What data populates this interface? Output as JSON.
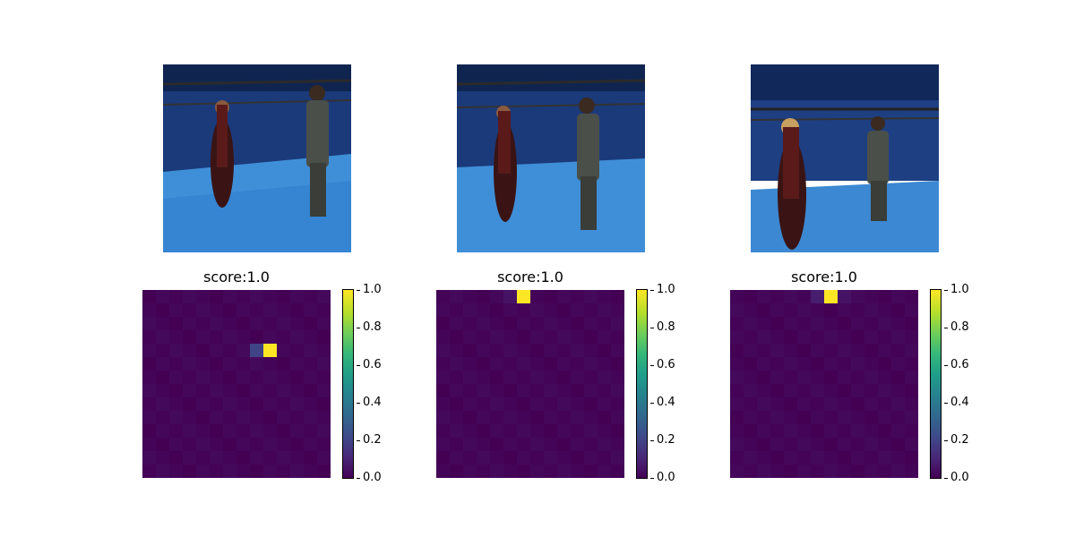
{
  "chart_data": [
    {
      "type": "image",
      "panel": "photo-1"
    },
    {
      "type": "image",
      "panel": "photo-2"
    },
    {
      "type": "image",
      "panel": "photo-3"
    },
    {
      "type": "heatmap",
      "title": "score:1.0",
      "grid": [
        14,
        14
      ],
      "hot_cells": [
        {
          "row": 4,
          "col": 9,
          "value": 1.0
        },
        {
          "row": 4,
          "col": 8,
          "value": 0.2
        }
      ],
      "colorbar": {
        "ticks": [
          "0.0",
          "0.2",
          "0.4",
          "0.6",
          "0.8",
          "1.0"
        ],
        "range": [
          0,
          1
        ],
        "colormap": "viridis"
      }
    },
    {
      "type": "heatmap",
      "title": "score:1.0",
      "grid": [
        14,
        14
      ],
      "hot_cells": [
        {
          "row": 0,
          "col": 6,
          "value": 1.0
        },
        {
          "row": 0,
          "col": 5,
          "value": 0.05
        }
      ],
      "colorbar": {
        "ticks": [
          "0.0",
          "0.2",
          "0.4",
          "0.6",
          "0.8",
          "1.0"
        ],
        "range": [
          0,
          1
        ],
        "colormap": "viridis"
      }
    },
    {
      "type": "heatmap",
      "title": "score:1.0",
      "grid": [
        14,
        14
      ],
      "hot_cells": [
        {
          "row": 0,
          "col": 7,
          "value": 1.0
        },
        {
          "row": 0,
          "col": 6,
          "value": 0.08
        },
        {
          "row": 0,
          "col": 8,
          "value": 0.05
        }
      ],
      "colorbar": {
        "ticks": [
          "0.0",
          "0.2",
          "0.4",
          "0.6",
          "0.8",
          "1.0"
        ],
        "range": [
          0,
          1
        ],
        "colormap": "viridis"
      }
    }
  ]
}
